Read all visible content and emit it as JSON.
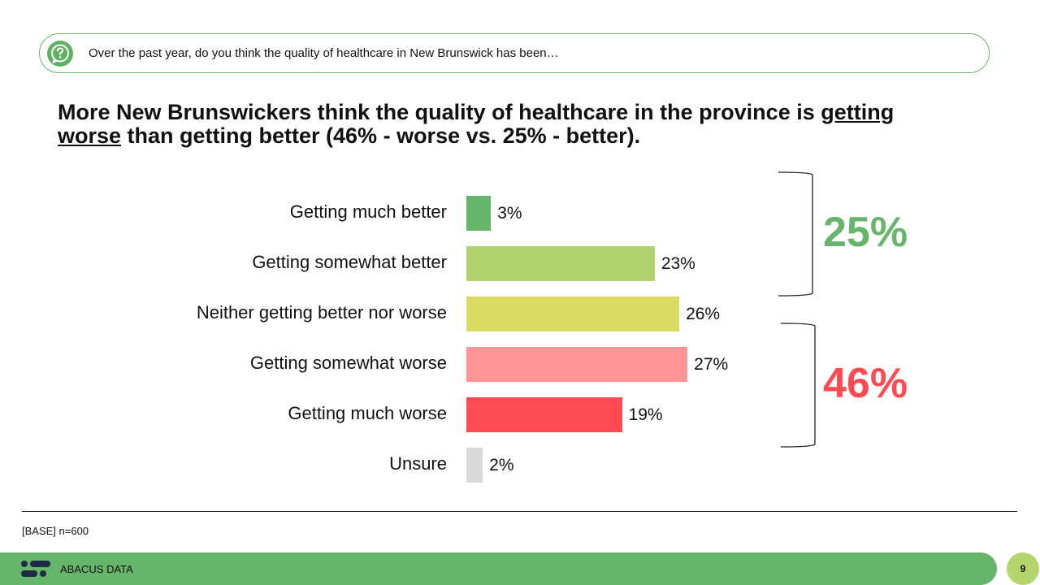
{
  "question": "Over the past year, do you think the quality of healthcare in New Brunswick has been…",
  "headline": {
    "part1": "More New Brunswickers think the quality of healthcare in the province is ",
    "underlined": "getting worse",
    "part2": " than getting better (46% - worse vs. 25% - better)."
  },
  "chart_data": {
    "type": "bar",
    "orientation": "horizontal",
    "categories": [
      "Getting much better",
      "Getting somewhat better",
      "Neither getting better nor worse",
      "Getting somewhat worse",
      "Getting much worse",
      "Unsure"
    ],
    "values": [
      3,
      23,
      26,
      27,
      19,
      2
    ],
    "value_labels": [
      "3%",
      "23%",
      "26%",
      "27%",
      "19%",
      "2%"
    ],
    "colors": [
      "#66b56a",
      "#b0d46e",
      "#d9db62",
      "#ff9596",
      "#ff4a52",
      "#d9d9d9"
    ],
    "groups": [
      {
        "label": "25%",
        "color": "#66b56a",
        "from": 0,
        "to": 1
      },
      {
        "label": "46%",
        "color": "#ff4a52",
        "from": 3,
        "to": 4
      }
    ]
  },
  "base": "[BASE] n=600",
  "brand": "ABACUS DATA",
  "page_number": "9",
  "icons": {
    "question": "question-bubble-icon",
    "logo": "abacus-logo-icon"
  }
}
